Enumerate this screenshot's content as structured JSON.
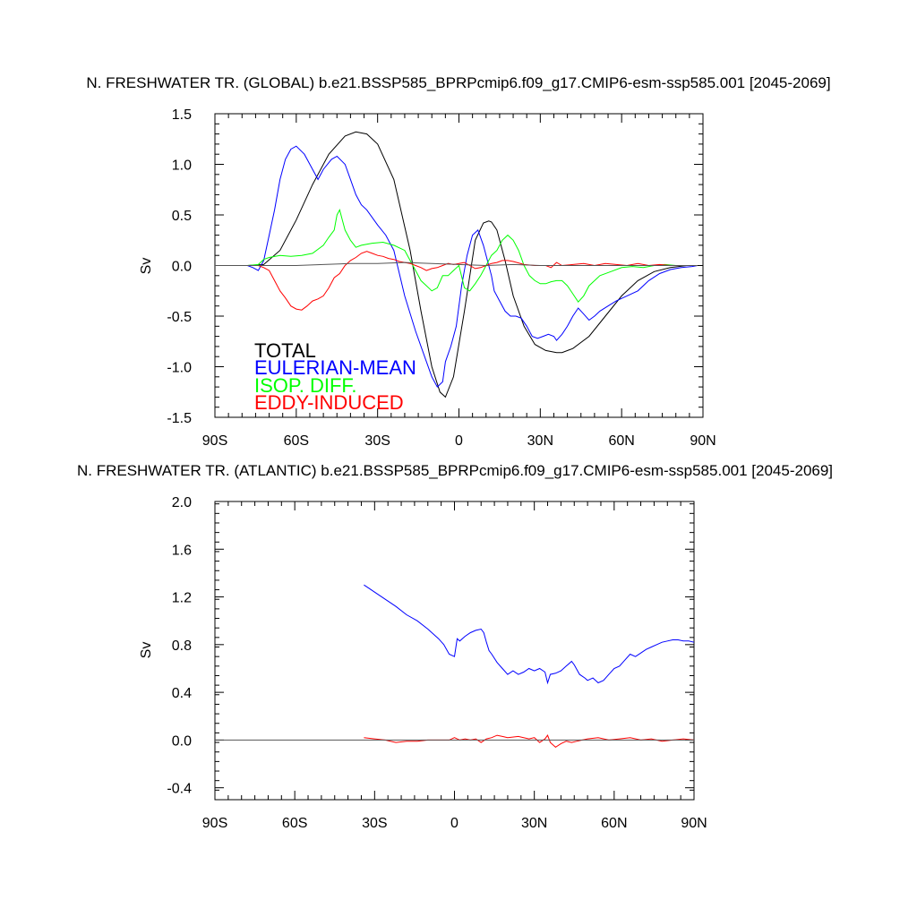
{
  "chart_data": [
    {
      "type": "line",
      "title": "N. FRESHWATER TR. (GLOBAL) b.e21.BSSP585_BPRPcmip6.f09_g17.CMIP6-esm-ssp585.001 [2045-2069]",
      "xlabel": "",
      "ylabel": "Sv",
      "xlim": [
        -90,
        90
      ],
      "ylim": [
        -1.5,
        1.5
      ],
      "x_ticks": [
        -90,
        -60,
        -30,
        0,
        30,
        60,
        90
      ],
      "x_tick_labels": [
        "90S",
        "60S",
        "30S",
        "0",
        "30N",
        "60N",
        "90N"
      ],
      "y_ticks": [
        -1.5,
        -1.0,
        -0.5,
        0.0,
        0.5,
        1.0,
        1.5
      ],
      "y_tick_labels": [
        "-1.5",
        "-1.0",
        "-0.5",
        "0.0",
        "0.5",
        "1.0",
        "1.5"
      ],
      "zero_line": true,
      "legend": {
        "placement": "lower-left",
        "entries": [
          "TOTAL",
          "EULERIAN-MEAN",
          "ISOP. DIFF.",
          "EDDY-INDUCED"
        ]
      },
      "series": [
        {
          "name": "TOTAL",
          "color": "#000000",
          "x": [
            -78,
            -72,
            -66,
            -60,
            -54,
            -48,
            -42,
            -38,
            -34,
            -30,
            -24,
            -18,
            -14,
            -10,
            -7,
            -5,
            -2,
            2,
            6,
            9,
            11,
            12,
            14,
            17,
            20,
            24,
            28,
            32,
            36,
            38,
            42,
            48,
            54,
            60,
            66,
            72,
            78,
            84,
            88
          ],
          "y": [
            0.0,
            0.01,
            0.15,
            0.45,
            0.8,
            1.1,
            1.28,
            1.32,
            1.3,
            1.2,
            0.85,
            0.15,
            -0.45,
            -1.0,
            -1.25,
            -1.3,
            -1.1,
            -0.45,
            0.25,
            0.42,
            0.44,
            0.43,
            0.35,
            0.05,
            -0.3,
            -0.6,
            -0.78,
            -0.84,
            -0.86,
            -0.86,
            -0.82,
            -0.7,
            -0.5,
            -0.3,
            -0.15,
            -0.06,
            -0.02,
            0.0,
            0.0
          ]
        },
        {
          "name": "EULERIAN-MEAN",
          "color": "#0000ff",
          "x": [
            -78,
            -76,
            -74,
            -72,
            -70,
            -68,
            -66,
            -64,
            -62,
            -60,
            -57,
            -55,
            -52,
            -50,
            -47,
            -45,
            -42,
            -40,
            -38,
            -36,
            -34,
            -30,
            -27,
            -24,
            -20,
            -16,
            -12,
            -10,
            -8,
            -6,
            -5,
            -3,
            -1,
            1,
            3,
            5,
            7,
            9,
            11,
            12,
            13,
            15,
            17,
            19,
            21,
            23,
            25,
            27,
            29,
            31,
            33,
            35,
            36,
            38,
            40,
            42,
            44,
            46,
            48,
            50,
            52,
            55,
            58,
            62,
            66,
            70,
            74,
            78,
            82,
            86,
            88
          ],
          "y": [
            0.0,
            -0.02,
            -0.05,
            0.05,
            0.3,
            0.55,
            0.85,
            1.05,
            1.15,
            1.18,
            1.1,
            1.0,
            0.85,
            0.95,
            1.05,
            1.08,
            1.0,
            0.85,
            0.7,
            0.6,
            0.55,
            0.4,
            0.3,
            0.15,
            -0.3,
            -0.65,
            -0.95,
            -1.1,
            -1.2,
            -1.15,
            -0.95,
            -0.8,
            -0.6,
            -0.2,
            0.1,
            0.3,
            0.35,
            0.2,
            0.0,
            -0.1,
            -0.25,
            -0.35,
            -0.45,
            -0.5,
            -0.5,
            -0.52,
            -0.6,
            -0.7,
            -0.72,
            -0.7,
            -0.68,
            -0.7,
            -0.74,
            -0.68,
            -0.6,
            -0.5,
            -0.42,
            -0.48,
            -0.54,
            -0.5,
            -0.45,
            -0.4,
            -0.35,
            -0.3,
            -0.25,
            -0.15,
            -0.08,
            -0.04,
            -0.02,
            -0.01,
            0.0
          ]
        },
        {
          "name": "ISOP. DIFF.",
          "color": "#00ff00",
          "x": [
            -78,
            -74,
            -72,
            -70,
            -66,
            -62,
            -58,
            -54,
            -50,
            -48,
            -46,
            -45,
            -44,
            -43,
            -42,
            -40,
            -38,
            -36,
            -32,
            -28,
            -24,
            -20,
            -18,
            -16,
            -14,
            -12,
            -10,
            -8,
            -6,
            -4,
            -2,
            0,
            2,
            4,
            6,
            8,
            10,
            12,
            14,
            16,
            18,
            20,
            22,
            24,
            26,
            28,
            30,
            32,
            34,
            36,
            38,
            40,
            42,
            44,
            46,
            48,
            52,
            56,
            60,
            64,
            68,
            72,
            76,
            80,
            84,
            88
          ],
          "y": [
            0.0,
            0.01,
            0.06,
            0.08,
            0.1,
            0.09,
            0.1,
            0.12,
            0.2,
            0.28,
            0.35,
            0.5,
            0.55,
            0.45,
            0.35,
            0.25,
            0.18,
            0.2,
            0.22,
            0.23,
            0.2,
            0.15,
            0.05,
            -0.05,
            -0.15,
            -0.2,
            -0.25,
            -0.22,
            -0.1,
            -0.1,
            -0.05,
            0.0,
            -0.22,
            -0.25,
            -0.18,
            -0.1,
            0.0,
            0.1,
            0.15,
            0.25,
            0.3,
            0.25,
            0.15,
            0.0,
            -0.1,
            -0.15,
            -0.18,
            -0.18,
            -0.16,
            -0.15,
            -0.15,
            -0.2,
            -0.28,
            -0.36,
            -0.3,
            -0.2,
            -0.1,
            -0.06,
            -0.02,
            -0.01,
            -0.02,
            0.0,
            0.01,
            0.0,
            0.0,
            0.0
          ]
        },
        {
          "name": "EDDY-INDUCED",
          "color": "#ff0000",
          "x": [
            -78,
            -74,
            -72,
            -70,
            -68,
            -66,
            -64,
            -62,
            -60,
            -58,
            -56,
            -54,
            -52,
            -50,
            -48,
            -46,
            -44,
            -42,
            -40,
            -38,
            -36,
            -34,
            -32,
            -30,
            -28,
            -26,
            -24,
            -22,
            -20,
            -18,
            -16,
            -14,
            -12,
            -10,
            -8,
            -6,
            -4,
            -2,
            0,
            2,
            4,
            6,
            8,
            10,
            12,
            14,
            16,
            18,
            20,
            24,
            28,
            32,
            34,
            36,
            38,
            42,
            46,
            50,
            54,
            58,
            62,
            66,
            70,
            74,
            78,
            82,
            86,
            88
          ],
          "y": [
            0.0,
            0.0,
            -0.02,
            -0.05,
            -0.15,
            -0.25,
            -0.32,
            -0.4,
            -0.43,
            -0.44,
            -0.4,
            -0.35,
            -0.33,
            -0.3,
            -0.22,
            -0.12,
            -0.08,
            0.0,
            0.05,
            0.08,
            0.12,
            0.14,
            0.12,
            0.1,
            0.09,
            0.07,
            0.06,
            0.04,
            0.03,
            0.02,
            0.0,
            -0.02,
            -0.05,
            -0.03,
            -0.02,
            0.0,
            0.02,
            0.01,
            0.02,
            0.03,
            0.0,
            -0.03,
            -0.02,
            0.0,
            0.02,
            0.03,
            0.05,
            0.05,
            0.04,
            0.01,
            0.0,
            0.0,
            -0.02,
            0.03,
            0.0,
            0.01,
            0.02,
            0.0,
            0.02,
            0.01,
            0.0,
            0.02,
            0.0,
            0.01,
            0.0,
            0.0,
            0.0,
            0.0
          ]
        },
        {
          "name": "",
          "color": "#555555",
          "x": [
            -90,
            -80,
            -70,
            -60,
            -50,
            -40,
            -30,
            -20,
            -10,
            0,
            10,
            20,
            30,
            40,
            50,
            60,
            70,
            80,
            88
          ],
          "y": [
            0.0,
            0.0,
            0.0,
            0.0,
            0.01,
            0.02,
            0.02,
            0.03,
            0.02,
            0.01,
            0.0,
            0.01,
            0.0,
            0.0,
            0.0,
            0.0,
            0.0,
            0.0,
            0.0
          ]
        }
      ]
    },
    {
      "type": "line",
      "title": "N. FRESHWATER TR. (ATLANTIC) b.e21.BSSP585_BPRPcmip6.f09_g17.CMIP6-esm-ssp585.001 [2045-2069]",
      "xlabel": "",
      "ylabel": "Sv",
      "xlim": [
        -90,
        90
      ],
      "ylim": [
        -0.5,
        2.0
      ],
      "x_ticks": [
        -90,
        -60,
        -30,
        0,
        30,
        60,
        90
      ],
      "x_tick_labels": [
        "90S",
        "60S",
        "30S",
        "0",
        "30N",
        "60N",
        "90N"
      ],
      "y_ticks": [
        -0.4,
        0.0,
        0.4,
        0.8,
        1.2,
        1.6,
        2.0
      ],
      "y_tick_labels": [
        "-0.4",
        "0.0",
        "0.4",
        "0.8",
        "1.2",
        "1.6",
        "2.0"
      ],
      "zero_line": true,
      "series": [
        {
          "name": "EULERIAN-MEAN",
          "color": "#0000ff",
          "x": [
            -34,
            -32,
            -30,
            -26,
            -22,
            -18,
            -14,
            -10,
            -6,
            -4,
            -2,
            0,
            1,
            2,
            4,
            6,
            8,
            10,
            11,
            12,
            13,
            14,
            16,
            18,
            20,
            22,
            24,
            26,
            28,
            30,
            32,
            34,
            35,
            36,
            38,
            40,
            42,
            44,
            45,
            47,
            49,
            50,
            52,
            54,
            56,
            58,
            60,
            62,
            64,
            66,
            68,
            70,
            72,
            74,
            76,
            78,
            80,
            82,
            84,
            86,
            88,
            90
          ],
          "y": [
            1.3,
            1.27,
            1.24,
            1.18,
            1.12,
            1.05,
            1.0,
            0.93,
            0.85,
            0.8,
            0.72,
            0.7,
            0.85,
            0.83,
            0.87,
            0.9,
            0.92,
            0.93,
            0.9,
            0.82,
            0.75,
            0.72,
            0.65,
            0.6,
            0.55,
            0.58,
            0.55,
            0.57,
            0.6,
            0.58,
            0.6,
            0.57,
            0.48,
            0.55,
            0.56,
            0.58,
            0.62,
            0.66,
            0.63,
            0.55,
            0.52,
            0.5,
            0.52,
            0.48,
            0.5,
            0.55,
            0.6,
            0.62,
            0.67,
            0.72,
            0.7,
            0.73,
            0.76,
            0.78,
            0.8,
            0.82,
            0.83,
            0.84,
            0.84,
            0.83,
            0.83,
            0.82
          ]
        },
        {
          "name": "EDDY-INDUCED",
          "color": "#ff0000",
          "x": [
            -34,
            -30,
            -26,
            -22,
            -18,
            -14,
            -10,
            -6,
            -2,
            0,
            2,
            4,
            6,
            8,
            10,
            12,
            14,
            16,
            18,
            20,
            24,
            28,
            30,
            32,
            34,
            35,
            36,
            38,
            40,
            42,
            44,
            46,
            48,
            50,
            54,
            58,
            62,
            66,
            70,
            74,
            78,
            82,
            86,
            90
          ],
          "y": [
            0.02,
            0.01,
            0.0,
            -0.02,
            -0.01,
            -0.01,
            0.0,
            0.0,
            0.0,
            0.02,
            0.0,
            0.01,
            0.0,
            0.01,
            -0.02,
            0.01,
            0.02,
            0.04,
            0.03,
            0.02,
            0.03,
            0.01,
            0.02,
            -0.02,
            0.01,
            0.04,
            -0.02,
            -0.06,
            -0.03,
            -0.01,
            -0.02,
            -0.01,
            0.0,
            0.01,
            0.02,
            0.0,
            0.01,
            0.02,
            0.0,
            0.01,
            -0.01,
            0.0,
            0.01,
            0.0
          ]
        },
        {
          "name": "",
          "color": "#555555",
          "x": [
            -90,
            -60,
            -30,
            0,
            30,
            60,
            90
          ],
          "y": [
            0.0,
            0.0,
            0.0,
            0.0,
            0.0,
            0.0,
            0.0
          ]
        }
      ]
    }
  ]
}
